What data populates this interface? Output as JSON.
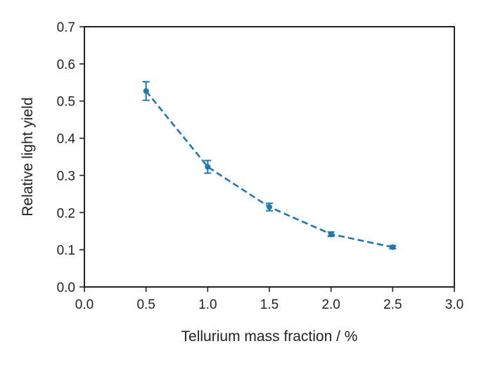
{
  "chart_data": {
    "type": "line",
    "title": "",
    "xlabel": "Tellurium mass fraction / %",
    "ylabel": "Relative light yield",
    "xlim": [
      0.0,
      3.0
    ],
    "ylim": [
      0.0,
      0.7
    ],
    "xticks": [
      "0.0",
      "0.5",
      "1.0",
      "1.5",
      "2.0",
      "2.5",
      "3.0"
    ],
    "yticks": [
      "0.0",
      "0.1",
      "0.2",
      "0.3",
      "0.4",
      "0.5",
      "0.6",
      "0.7"
    ],
    "grid": false,
    "legend": "none",
    "line_style": "dashed",
    "color": "#1f77b4",
    "series": [
      {
        "x": [
          0.5,
          1.0,
          1.5,
          2.0,
          2.5
        ],
        "y": [
          0.527,
          0.323,
          0.215,
          0.142,
          0.107
        ],
        "yerr": [
          0.025,
          0.017,
          0.01,
          0.006,
          0.004
        ]
      }
    ]
  }
}
